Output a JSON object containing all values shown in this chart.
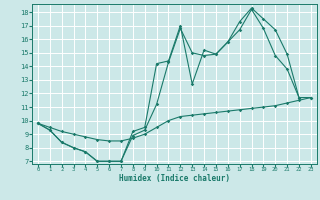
{
  "xlabel": "Humidex (Indice chaleur)",
  "bg_color": "#cce8e8",
  "line_color": "#1a7a6a",
  "grid_color": "#ffffff",
  "xlim": [
    -0.5,
    23.5
  ],
  "ylim": [
    6.8,
    18.6
  ],
  "xticks": [
    0,
    1,
    2,
    3,
    4,
    5,
    6,
    7,
    8,
    9,
    10,
    11,
    12,
    13,
    14,
    15,
    16,
    17,
    18,
    19,
    20,
    21,
    22,
    23
  ],
  "yticks": [
    7,
    8,
    9,
    10,
    11,
    12,
    13,
    14,
    15,
    16,
    17,
    18
  ],
  "line1_x": [
    0,
    1,
    2,
    3,
    4,
    5,
    6,
    7,
    8,
    9,
    10,
    11,
    12,
    13,
    14,
    15,
    16,
    17,
    18,
    19,
    20,
    21,
    22
  ],
  "line1_y": [
    9.8,
    9.3,
    8.4,
    8.0,
    7.7,
    7.0,
    7.0,
    7.0,
    8.9,
    9.3,
    11.2,
    14.3,
    16.8,
    15.0,
    14.8,
    14.9,
    15.8,
    16.7,
    18.2,
    16.8,
    14.8,
    13.8,
    11.7
  ],
  "line2_x": [
    0,
    1,
    2,
    3,
    4,
    5,
    6,
    7,
    8,
    9,
    10,
    11,
    12,
    13,
    14,
    15,
    16,
    17,
    18,
    19,
    20,
    21,
    22,
    23
  ],
  "line2_y": [
    9.8,
    9.3,
    8.4,
    8.0,
    7.7,
    7.0,
    7.0,
    7.0,
    9.2,
    9.5,
    14.2,
    14.4,
    17.0,
    12.7,
    15.2,
    14.9,
    15.8,
    17.3,
    18.3,
    17.5,
    16.7,
    14.9,
    11.7,
    11.7
  ],
  "line3_x": [
    0,
    1,
    2,
    3,
    4,
    5,
    6,
    7,
    8,
    9,
    10,
    11,
    12,
    13,
    14,
    15,
    16,
    17,
    18,
    19,
    20,
    21,
    22,
    23
  ],
  "line3_y": [
    9.8,
    9.5,
    9.2,
    9.0,
    8.8,
    8.6,
    8.5,
    8.5,
    8.7,
    9.0,
    9.5,
    10.0,
    10.3,
    10.4,
    10.5,
    10.6,
    10.7,
    10.8,
    10.9,
    11.0,
    11.1,
    11.3,
    11.5,
    11.7
  ]
}
